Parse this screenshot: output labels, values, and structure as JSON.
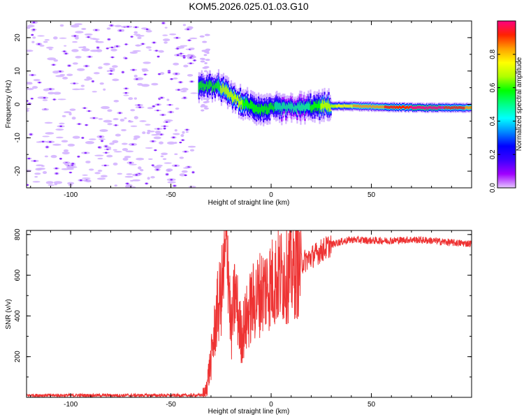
{
  "title": "KOM5.2026.025.01.03.G10",
  "colors": {
    "series_line": "#ee3333",
    "speckle": "#d4b4ff",
    "colormap": [
      "#e5c7ff",
      "#a000ff",
      "#3c00ff",
      "#0000ff",
      "#0088ff",
      "#00ffff",
      "#00ff88",
      "#00ff00",
      "#b0ff00",
      "#ffff00",
      "#ffa000",
      "#ff2200",
      "#ff0080"
    ]
  },
  "chart_data": [
    {
      "type": "heatmap",
      "xlabel": "Height of straight line (km)",
      "ylabel": "Frequency (Hz)",
      "xlim": [
        -122,
        100
      ],
      "ylim": [
        -25,
        25
      ],
      "xticks": [
        -100,
        -50,
        0,
        50
      ],
      "yticks": [
        -20,
        -10,
        0,
        10,
        20
      ],
      "colorbar": {
        "label": "Normalized spectral amplitude",
        "range": [
          0,
          1
        ],
        "ticks": [
          0.0,
          0.2,
          0.4,
          0.6,
          0.8
        ]
      },
      "ridge": [
        {
          "x": -30,
          "y": 5.5,
          "amp": 0.55
        },
        {
          "x": -25,
          "y": 5.0,
          "amp": 0.6
        },
        {
          "x": -15,
          "y": 0.5,
          "amp": 0.6
        },
        {
          "x": -5,
          "y": -1.5,
          "amp": 0.55
        },
        {
          "x": 5,
          "y": -1.0,
          "amp": 0.5
        },
        {
          "x": 15,
          "y": -1.0,
          "amp": 0.45
        },
        {
          "x": 25,
          "y": -0.5,
          "amp": 0.6
        },
        {
          "x": 40,
          "y": -0.5,
          "amp": 0.75
        },
        {
          "x": 60,
          "y": -0.8,
          "amp": 0.85
        },
        {
          "x": 75,
          "y": -1.0,
          "amp": 0.95
        },
        {
          "x": 90,
          "y": -1.0,
          "amp": 0.9
        },
        {
          "x": 100,
          "y": -1.0,
          "amp": 0.8
        }
      ]
    },
    {
      "type": "line",
      "xlabel": "Height of straight line (km)",
      "ylabel": "SNR (v/v)",
      "xlim": [
        -122,
        100
      ],
      "ylim": [
        0,
        820
      ],
      "xticks": [
        -100,
        -50,
        0,
        50
      ],
      "yticks": [
        200,
        400,
        600,
        800
      ],
      "series": [
        {
          "x": [
            -122,
            -40,
            -33,
            -30,
            -27,
            -25,
            -23,
            -22,
            -21,
            -20,
            -18,
            -15,
            -10,
            -5,
            0,
            5,
            10,
            15,
            20,
            25,
            30,
            35,
            40,
            50,
            60,
            70,
            80,
            90,
            100
          ],
          "values": [
            10,
            10,
            12,
            180,
            420,
            500,
            650,
            820,
            560,
            300,
            520,
            300,
            450,
            520,
            560,
            600,
            620,
            660,
            690,
            720,
            750,
            765,
            775,
            770,
            770,
            775,
            770,
            760,
            755
          ]
        }
      ]
    }
  ]
}
